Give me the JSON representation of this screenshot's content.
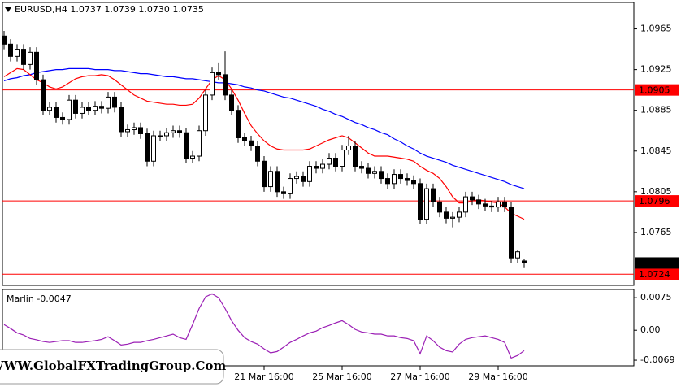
{
  "watermark": "WWW.GlobalFXTradingGroup.Com",
  "chart_data": [
    {
      "type": "candlestick",
      "title": "EURUSD,H4  1.0737 1.0739 1.0730 1.0735",
      "up_color": "#ffffff",
      "down_color": "#000000",
      "categories": [
        null,
        null,
        null,
        null,
        null,
        null,
        null,
        null,
        null,
        null,
        null,
        null,
        null,
        null,
        null,
        null,
        null,
        null,
        null,
        null,
        null,
        null,
        null,
        null,
        null,
        null,
        null,
        null,
        null,
        null,
        null,
        null,
        null,
        null,
        null,
        null,
        null,
        null,
        null,
        null,
        "21 Mar 16:00",
        null,
        null,
        null,
        null,
        null,
        null,
        null,
        null,
        null,
        null,
        null,
        "25 Mar 16:00",
        null,
        null,
        null,
        null,
        null,
        null,
        null,
        null,
        null,
        null,
        null,
        "27 Mar 16:00",
        null,
        null,
        null,
        null,
        null,
        null,
        null,
        null,
        null,
        null,
        null,
        "29 Mar 16:00",
        null,
        null,
        null,
        null
      ],
      "ohlc": [
        [
          1.0958,
          1.0963,
          1.0945,
          1.095
        ],
        [
          1.095,
          1.0955,
          1.0933,
          1.0938
        ],
        [
          1.0938,
          1.095,
          1.0933,
          1.0945
        ],
        [
          1.0945,
          1.095,
          1.0925,
          1.093
        ],
        [
          1.093,
          1.0947,
          1.0925,
          1.0942
        ],
        [
          1.0942,
          1.0947,
          1.091,
          1.0915
        ],
        [
          1.0915,
          1.092,
          1.088,
          1.0885
        ],
        [
          1.0885,
          1.0893,
          1.088,
          1.0888
        ],
        [
          1.0888,
          1.0893,
          1.0873,
          1.0878
        ],
        [
          1.0878,
          1.0883,
          1.0871,
          1.0876
        ],
        [
          1.0876,
          1.09,
          1.0871,
          1.0895
        ],
        [
          1.0895,
          1.09,
          1.0877,
          1.0882
        ],
        [
          1.0882,
          1.0893,
          1.0877,
          1.0888
        ],
        [
          1.0888,
          1.0893,
          1.088,
          1.0885
        ],
        [
          1.0885,
          1.0894,
          1.088,
          1.0889
        ],
        [
          1.0889,
          1.0894,
          1.0882,
          1.0887
        ],
        [
          1.0887,
          1.0903,
          1.0882,
          1.0898
        ],
        [
          1.0898,
          1.0903,
          1.0883,
          1.0888
        ],
        [
          1.0888,
          1.0893,
          1.0859,
          1.0864
        ],
        [
          1.0864,
          1.0871,
          1.0859,
          1.0866
        ],
        [
          1.0866,
          1.0873,
          1.0861,
          1.0868
        ],
        [
          1.0868,
          1.0873,
          1.0857,
          1.0862
        ],
        [
          1.0862,
          1.0867,
          1.083,
          1.0835
        ],
        [
          1.0835,
          1.0865,
          1.083,
          1.086
        ],
        [
          1.086,
          1.0865,
          1.0855,
          1.086
        ],
        [
          1.086,
          1.0868,
          1.0855,
          1.0863
        ],
        [
          1.0863,
          1.087,
          1.0858,
          1.0865
        ],
        [
          1.0865,
          1.087,
          1.0858,
          1.0863
        ],
        [
          1.0863,
          1.0868,
          1.0833,
          1.0838
        ],
        [
          1.0838,
          1.0845,
          1.0833,
          1.084
        ],
        [
          1.084,
          1.087,
          1.0835,
          1.0865
        ],
        [
          1.0865,
          1.0905,
          1.086,
          1.09
        ],
        [
          1.09,
          1.0927,
          1.0895,
          1.0922
        ],
        [
          1.0922,
          1.0932,
          1.0915,
          1.092
        ],
        [
          1.092,
          1.0943,
          1.0895,
          1.09
        ],
        [
          1.09,
          1.0905,
          1.088,
          1.0885
        ],
        [
          1.0885,
          1.089,
          1.0853,
          1.0858
        ],
        [
          1.0858,
          1.0863,
          1.085,
          1.0855
        ],
        [
          1.0855,
          1.086,
          1.0845,
          1.085
        ],
        [
          1.085,
          1.0855,
          1.083,
          1.0835
        ],
        [
          1.0835,
          1.084,
          1.0805,
          1.081
        ],
        [
          1.081,
          1.083,
          1.0805,
          1.0825
        ],
        [
          1.0825,
          1.083,
          1.08,
          1.0805
        ],
        [
          1.0805,
          1.081,
          1.0798,
          1.0803
        ],
        [
          1.0803,
          1.0823,
          1.0798,
          1.0818
        ],
        [
          1.0818,
          1.0825,
          1.0813,
          1.082
        ],
        [
          1.082,
          1.0825,
          1.081,
          1.0815
        ],
        [
          1.0815,
          1.0835,
          1.081,
          1.083
        ],
        [
          1.083,
          1.0835,
          1.0823,
          1.0828
        ],
        [
          1.0828,
          1.0837,
          1.0823,
          1.0832
        ],
        [
          1.0832,
          1.0843,
          1.0827,
          1.0838
        ],
        [
          1.0838,
          1.0843,
          1.0825,
          1.083
        ],
        [
          1.083,
          1.0851,
          1.0825,
          1.0846
        ],
        [
          1.0846,
          1.086,
          1.0841,
          1.085
        ],
        [
          1.085,
          1.0855,
          1.0825,
          1.083
        ],
        [
          1.083,
          1.0835,
          1.0823,
          1.0828
        ],
        [
          1.0828,
          1.0833,
          1.0818,
          1.0823
        ],
        [
          1.0823,
          1.083,
          1.0818,
          1.0825
        ],
        [
          1.0825,
          1.083,
          1.0813,
          1.0818
        ],
        [
          1.0818,
          1.0823,
          1.0808,
          1.0813
        ],
        [
          1.0813,
          1.0827,
          1.0808,
          1.0822
        ],
        [
          1.0822,
          1.0827,
          1.0813,
          1.0818
        ],
        [
          1.0818,
          1.0823,
          1.0811,
          1.0816
        ],
        [
          1.0816,
          1.0821,
          1.0808,
          1.0813
        ],
        [
          1.0813,
          1.0818,
          1.0773,
          1.0778
        ],
        [
          1.0778,
          1.0813,
          1.0773,
          1.0808
        ],
        [
          1.0808,
          1.0813,
          1.079,
          1.0795
        ],
        [
          1.0795,
          1.08,
          1.078,
          1.0785
        ],
        [
          1.0785,
          1.079,
          1.0774,
          1.0779
        ],
        [
          1.0779,
          1.0785,
          1.077,
          1.078
        ],
        [
          1.078,
          1.079,
          1.0775,
          1.0785
        ],
        [
          1.0785,
          1.0805,
          1.078,
          1.08
        ],
        [
          1.08,
          1.0805,
          1.0792,
          1.0797
        ],
        [
          1.0797,
          1.0802,
          1.0788,
          1.0793
        ],
        [
          1.0793,
          1.0798,
          1.0786,
          1.0791
        ],
        [
          1.0791,
          1.0796,
          1.0785,
          1.079
        ],
        [
          1.079,
          1.08,
          1.0785,
          1.0795
        ],
        [
          1.0795,
          1.08,
          1.0785,
          1.079
        ],
        [
          1.079,
          1.0795,
          1.0735,
          1.074
        ],
        [
          1.074,
          1.0748,
          1.0735,
          1.0746
        ],
        [
          1.0737,
          1.0739,
          1.073,
          1.0735
        ]
      ],
      "series": [
        {
          "color": "#0000ff",
          "values": [
            1.0914,
            1.0916,
            1.0917,
            1.0919,
            1.092,
            1.0922,
            1.0923,
            1.0924,
            1.0925,
            1.0925,
            1.0926,
            1.0926,
            1.0926,
            1.0926,
            1.0925,
            1.0925,
            1.0925,
            1.0924,
            1.0924,
            1.0923,
            1.0922,
            1.0921,
            1.0921,
            1.092,
            1.0919,
            1.0918,
            1.0918,
            1.0917,
            1.0916,
            1.0916,
            1.0915,
            1.0914,
            1.0913,
            1.0912,
            1.0912,
            1.0911,
            1.091,
            1.0908,
            1.0907,
            1.0905,
            1.0904,
            1.0902,
            1.09,
            1.0898,
            1.0897,
            1.0895,
            1.0893,
            1.0891,
            1.0889,
            1.0886,
            1.0884,
            1.0881,
            1.0879,
            1.0876,
            1.0873,
            1.0871,
            1.0868,
            1.0866,
            1.0863,
            1.0861,
            1.0857,
            1.0854,
            1.085,
            1.0847,
            1.0843,
            1.084,
            1.0838,
            1.0836,
            1.0834,
            1.0831,
            1.0829,
            1.0827,
            1.0825,
            1.0823,
            1.0821,
            1.0819,
            1.0817,
            1.0815,
            1.0812,
            1.081,
            1.0808
          ]
        },
        {
          "color": "#ff0000",
          "values": [
            1.0918,
            1.0922,
            1.0926,
            1.0925,
            1.092,
            1.0915,
            1.0912,
            1.0908,
            1.0906,
            1.0908,
            1.0912,
            1.0916,
            1.0918,
            1.0919,
            1.0919,
            1.092,
            1.0919,
            1.0915,
            1.091,
            1.0905,
            1.09,
            1.0897,
            1.0894,
            1.0893,
            1.0892,
            1.0891,
            1.0891,
            1.089,
            1.089,
            1.0891,
            1.0897,
            1.0906,
            1.0915,
            1.0919,
            1.0915,
            1.0906,
            1.0895,
            1.0882,
            1.087,
            1.0862,
            1.0855,
            1.085,
            1.0847,
            1.0846,
            1.0846,
            1.0846,
            1.0846,
            1.0847,
            1.085,
            1.0853,
            1.0856,
            1.0858,
            1.086,
            1.0858,
            1.0853,
            1.0848,
            1.0843,
            1.084,
            1.084,
            1.084,
            1.0839,
            1.0838,
            1.0837,
            1.0835,
            1.083,
            1.0826,
            1.0823,
            1.0818,
            1.081,
            1.08,
            1.0794,
            1.0794,
            1.0796,
            1.0797,
            1.0796,
            1.0795,
            1.0794,
            1.079,
            1.0784,
            1.0781,
            1.0778
          ]
        }
      ],
      "levels": [
        1.0905,
        1.0796,
        1.0724
      ],
      "level_color": "#ff0000",
      "current_price": 1.0735,
      "ylim": [
        1.0713,
        1.0991
      ],
      "yticks": [
        1.0965,
        1.0925,
        1.0885,
        1.0845,
        1.0805,
        1.0765
      ]
    },
    {
      "type": "line",
      "title": "Marlin -0.0047",
      "series": [
        {
          "color": "#9b1fb5",
          "values": [
            0.0013,
            0.0004,
            -0.0006,
            -0.0011,
            -0.0019,
            -0.0022,
            -0.0026,
            -0.0028,
            -0.0026,
            -0.0024,
            -0.0024,
            -0.0028,
            -0.0028,
            -0.0026,
            -0.0024,
            -0.0021,
            -0.0015,
            -0.0024,
            -0.0034,
            -0.0032,
            -0.0028,
            -0.0028,
            -0.0024,
            -0.0021,
            -0.0017,
            -0.0013,
            -0.0009,
            -0.0017,
            -0.0021,
            0.0013,
            0.005,
            0.0077,
            0.0084,
            0.0075,
            0.005,
            0.0022,
            0.0,
            -0.0017,
            -0.0026,
            -0.0032,
            -0.0043,
            -0.0052,
            -0.0049,
            -0.0039,
            -0.0028,
            -0.0021,
            -0.0013,
            -0.0006,
            -0.0002,
            0.0006,
            0.0011,
            0.0017,
            0.0022,
            0.0013,
            0.0002,
            -0.0004,
            -0.0006,
            -0.0009,
            -0.0009,
            -0.0013,
            -0.0013,
            -0.0017,
            -0.0019,
            -0.0024,
            -0.0054,
            -0.0013,
            -0.0024,
            -0.0039,
            -0.0047,
            -0.005,
            -0.0032,
            -0.0021,
            -0.0017,
            -0.0015,
            -0.0013,
            -0.0017,
            -0.0021,
            -0.0028,
            -0.0064,
            -0.0058,
            -0.0047
          ]
        }
      ],
      "ylim": [
        -0.0082,
        0.0094
      ],
      "yticks": [
        0.0075,
        {
          "value": 0,
          "label": "0.00"
        },
        -0.0069
      ]
    }
  ]
}
